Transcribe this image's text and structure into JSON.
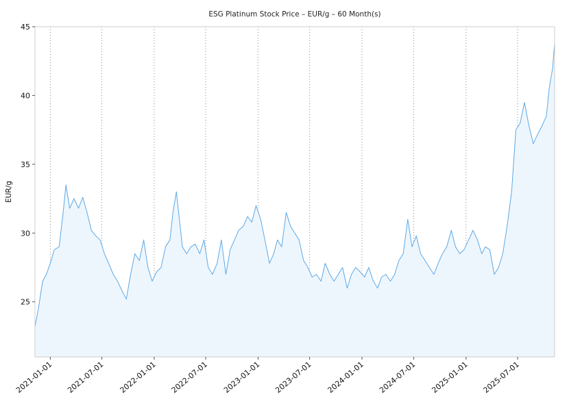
{
  "chart_data": {
    "type": "area",
    "title": "ESG Platinum Stock Price – EUR/g – 60 Month(s)",
    "xlabel": "",
    "ylabel": "EUR/g",
    "x_range": [
      "2020-11-08",
      "2025-11-08"
    ],
    "ylim": [
      21,
      45
    ],
    "y_ticks": [
      25,
      30,
      35,
      40,
      45
    ],
    "x_ticks": [
      "2021-01-01",
      "2021-07-01",
      "2022-01-01",
      "2022-07-01",
      "2023-01-01",
      "2023-07-01",
      "2024-01-01",
      "2024-07-01",
      "2025-01-01",
      "2025-07-01"
    ],
    "grid": "vertical dotted at x ticks",
    "legend": "none",
    "colors": {
      "line": "#5ba8e6",
      "fill": "#eef6fd",
      "grid": "#888888",
      "frame": "#cccccc"
    },
    "series": [
      {
        "x": [
          "2020-11-08",
          "2020-11-20",
          "2020-12-05",
          "2020-12-18",
          "2021-01-01",
          "2021-01-15",
          "2021-02-01",
          "2021-02-15",
          "2021-02-25",
          "2021-03-10",
          "2021-03-25",
          "2021-04-10",
          "2021-04-25",
          "2021-05-10",
          "2021-05-25",
          "2021-06-10",
          "2021-06-25",
          "2021-07-10",
          "2021-07-25",
          "2021-08-10",
          "2021-08-25",
          "2021-09-10",
          "2021-09-25",
          "2021-10-10",
          "2021-10-25",
          "2021-11-10",
          "2021-11-25",
          "2021-12-10",
          "2021-12-25",
          "2022-01-10",
          "2022-01-25",
          "2022-02-10",
          "2022-02-25",
          "2022-03-08",
          "2022-03-20",
          "2022-04-10",
          "2022-04-25",
          "2022-05-10",
          "2022-05-25",
          "2022-06-10",
          "2022-06-25",
          "2022-07-10",
          "2022-07-25",
          "2022-08-10",
          "2022-08-25",
          "2022-09-10",
          "2022-09-25",
          "2022-10-10",
          "2022-10-25",
          "2022-11-10",
          "2022-11-25",
          "2022-12-10",
          "2022-12-25",
          "2023-01-10",
          "2023-01-25",
          "2023-02-10",
          "2023-02-25",
          "2023-03-10",
          "2023-03-25",
          "2023-04-10",
          "2023-04-25",
          "2023-05-10",
          "2023-05-25",
          "2023-06-10",
          "2023-06-25",
          "2023-07-10",
          "2023-07-25",
          "2023-08-10",
          "2023-08-25",
          "2023-09-10",
          "2023-09-25",
          "2023-10-10",
          "2023-10-25",
          "2023-11-10",
          "2023-11-25",
          "2023-12-10",
          "2023-12-25",
          "2024-01-10",
          "2024-01-25",
          "2024-02-10",
          "2024-02-25",
          "2024-03-10",
          "2024-03-25",
          "2024-04-10",
          "2024-04-25",
          "2024-05-10",
          "2024-05-25",
          "2024-06-10",
          "2024-06-25",
          "2024-07-10",
          "2024-07-25",
          "2024-08-10",
          "2024-08-25",
          "2024-09-10",
          "2024-09-25",
          "2024-10-10",
          "2024-10-25",
          "2024-11-10",
          "2024-11-25",
          "2024-12-10",
          "2024-12-25",
          "2025-01-10",
          "2025-01-25",
          "2025-02-10",
          "2025-02-25",
          "2025-03-10",
          "2025-03-25",
          "2025-04-10",
          "2025-04-25",
          "2025-05-10",
          "2025-05-25",
          "2025-06-10",
          "2025-06-25",
          "2025-07-10",
          "2025-07-25",
          "2025-08-10",
          "2025-08-25",
          "2025-09-10",
          "2025-09-25",
          "2025-10-10",
          "2025-10-20",
          "2025-11-01",
          "2025-11-08"
        ],
        "values": [
          23.2,
          24.5,
          26.5,
          27.0,
          27.8,
          28.8,
          29.0,
          31.5,
          33.5,
          31.8,
          32.5,
          31.8,
          32.6,
          31.5,
          30.2,
          29.8,
          29.5,
          28.5,
          27.8,
          27.0,
          26.5,
          25.8,
          25.2,
          27.0,
          28.5,
          28.0,
          29.5,
          27.5,
          26.5,
          27.2,
          27.5,
          29.0,
          29.5,
          31.5,
          33.0,
          29.0,
          28.5,
          29.0,
          29.2,
          28.5,
          29.5,
          27.5,
          27.0,
          27.8,
          29.5,
          27.0,
          28.8,
          29.5,
          30.2,
          30.5,
          31.2,
          30.8,
          32.0,
          31.0,
          29.5,
          27.8,
          28.5,
          29.5,
          29.0,
          31.5,
          30.5,
          30.0,
          29.5,
          28.0,
          27.5,
          26.8,
          27.0,
          26.5,
          27.8,
          27.0,
          26.5,
          27.0,
          27.5,
          26.0,
          27.0,
          27.5,
          27.2,
          26.8,
          27.5,
          26.5,
          26.0,
          26.8,
          27.0,
          26.5,
          27.0,
          28.0,
          28.5,
          31.0,
          29.0,
          29.8,
          28.5,
          28.0,
          27.5,
          27.0,
          27.8,
          28.5,
          29.0,
          30.2,
          29.0,
          28.5,
          28.8,
          29.5,
          30.2,
          29.5,
          28.5,
          29.0,
          28.8,
          27.0,
          27.5,
          28.5,
          30.5,
          33.0,
          37.5,
          38.0,
          39.5,
          37.8,
          36.5,
          37.2,
          37.8,
          38.5,
          40.5,
          42.0,
          43.8
        ]
      }
    ]
  }
}
